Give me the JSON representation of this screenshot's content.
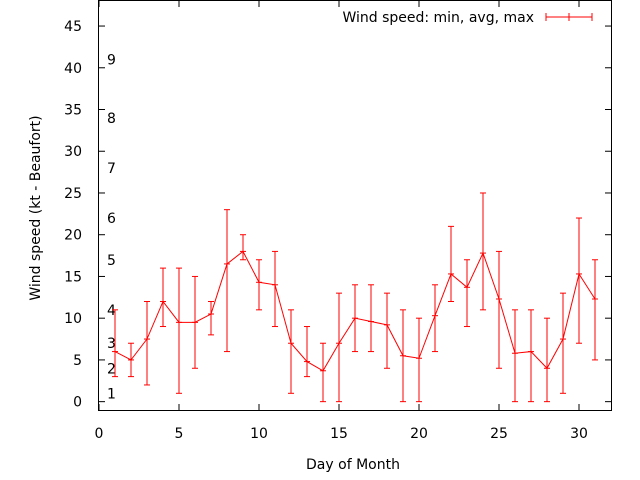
{
  "colors": {
    "series": "#ff0000",
    "axis": "#000000",
    "text": "#000000"
  },
  "chart_data": {
    "type": "line",
    "xlabel": "Day of Month",
    "ylabel": "Wind speed (kt - Beaufort)",
    "xlim": [
      0,
      32
    ],
    "ylim": [
      -1,
      48
    ],
    "xticks": [
      0,
      5,
      10,
      15,
      20,
      25,
      30
    ],
    "yticks": [
      0,
      5,
      10,
      15,
      20,
      25,
      30,
      35,
      40,
      45
    ],
    "grid": false,
    "legend_position": "top-right",
    "beaufort_labels": [
      {
        "label": "1",
        "y": 1
      },
      {
        "label": "2",
        "y": 4
      },
      {
        "label": "3",
        "y": 7
      },
      {
        "label": "4",
        "y": 11
      },
      {
        "label": "5",
        "y": 17
      },
      {
        "label": "6",
        "y": 22
      },
      {
        "label": "7",
        "y": 28
      },
      {
        "label": "8",
        "y": 34
      },
      {
        "label": "9",
        "y": 41
      }
    ],
    "series": [
      {
        "name": "Wind speed: min, avg, max",
        "x": [
          1,
          2,
          3,
          4,
          5,
          6,
          7,
          8,
          9,
          10,
          11,
          12,
          13,
          14,
          15,
          16,
          17,
          18,
          19,
          20,
          21,
          22,
          23,
          24,
          25,
          26,
          27,
          28,
          29,
          30,
          31
        ],
        "avg": [
          6,
          5,
          7.5,
          12,
          9.5,
          9.5,
          10.5,
          16.5,
          18,
          14.3,
          14,
          7,
          4.8,
          3.7,
          7,
          10,
          9.6,
          9.2,
          5.5,
          5.2,
          10.3,
          15.3,
          13.7,
          17.8,
          12.3,
          5.8,
          6,
          4,
          7.5,
          15.3,
          12.3
        ],
        "min": [
          3,
          3,
          2,
          9,
          1,
          4,
          8,
          6,
          17,
          11,
          9,
          1,
          3,
          0,
          0,
          6,
          6,
          4,
          0,
          0,
          6,
          12,
          9,
          11,
          4,
          0,
          0,
          0,
          1,
          7,
          5
        ],
        "max": [
          11,
          7,
          12,
          16,
          16,
          15,
          12,
          23,
          20,
          17,
          18,
          11,
          9,
          7,
          13,
          14,
          14,
          13,
          11,
          10,
          14,
          21,
          17,
          25,
          18,
          11,
          11,
          10,
          13,
          22,
          17
        ]
      }
    ]
  }
}
